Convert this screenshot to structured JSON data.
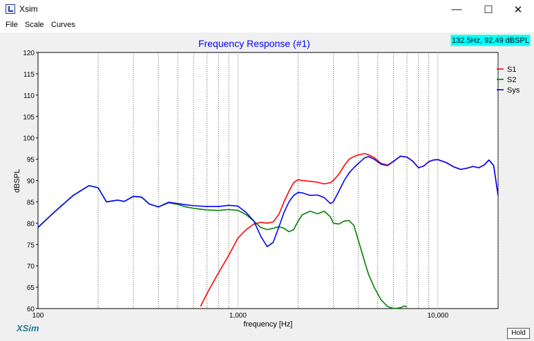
{
  "window": {
    "title": "Xsim",
    "minimize_glyph": "—",
    "maximize_glyph": "☐",
    "close_glyph": "✕"
  },
  "menu": {
    "items": [
      "File",
      "Scale",
      "Curves"
    ]
  },
  "readout": "132.5Hz, 92.49 dBSPL",
  "hold_label": "Hold",
  "logo_text": "XSim",
  "chart_data": {
    "type": "line",
    "title": "Frequency Response (#1)",
    "xlabel": "frequency [Hz]",
    "ylabel": "dBSPL",
    "x_scale": "log",
    "xlim": [
      100,
      20000
    ],
    "ylim": [
      60,
      120
    ],
    "y_ticks": [
      60,
      65,
      70,
      75,
      80,
      85,
      90,
      95,
      100,
      105,
      110,
      115,
      120
    ],
    "x_tick_labels": [
      {
        "value": 100,
        "label": "100"
      },
      {
        "value": 1000,
        "label": "1,000"
      },
      {
        "value": 10000,
        "label": "10,000"
      }
    ],
    "grid": "dotted vertical lines at 200-900 Hz, 2k-9k Hz and 20k Hz; light lines at decades",
    "legend_position": "top-right",
    "series": [
      {
        "name": "S1",
        "color": "#ff0000",
        "x": [
          650,
          700,
          780,
          850,
          900,
          1000,
          1100,
          1200,
          1300,
          1400,
          1500,
          1600,
          1700,
          1800,
          1900,
          2000,
          2100,
          2300,
          2500,
          2700,
          2900,
          3000,
          3200,
          3400,
          3600,
          3800,
          4000,
          4300,
          4500,
          4800,
          5200,
          5600,
          6000,
          6500,
          7000,
          7500,
          8000,
          8500,
          9000,
          9500,
          10000,
          11000,
          12000,
          13000,
          14000,
          15000,
          16000,
          17000,
          18000,
          19000,
          20000
        ],
        "y": [
          60.5,
          63.5,
          67.5,
          70.5,
          72.5,
          76.5,
          78.5,
          79.8,
          80.2,
          80.0,
          80.3,
          82.0,
          85.0,
          87.5,
          89.5,
          90.2,
          90.0,
          89.8,
          89.6,
          89.2,
          89.5,
          90.0,
          91.5,
          93.5,
          95.0,
          95.6,
          96.0,
          96.3,
          96.0,
          95.4,
          94.0,
          93.6,
          94.5,
          95.7,
          95.5,
          94.5,
          93.0,
          93.4,
          94.4,
          94.8,
          94.9,
          94.2,
          93.2,
          92.6,
          92.9,
          93.3,
          93.0,
          93.6,
          94.8,
          93.5,
          86.5
        ]
      },
      {
        "name": "S2",
        "color": "#008000",
        "x": [
          100,
          120,
          150,
          180,
          200,
          220,
          250,
          270,
          300,
          330,
          360,
          400,
          450,
          500,
          550,
          600,
          700,
          800,
          900,
          1000,
          1100,
          1200,
          1300,
          1400,
          1500,
          1600,
          1700,
          1800,
          1900,
          2000,
          2100,
          2300,
          2500,
          2700,
          2900,
          3000,
          3200,
          3400,
          3600,
          3800,
          4000,
          4300,
          4500,
          4800,
          5200,
          5600,
          6000,
          6500,
          6800,
          7000
        ],
        "y": [
          79.0,
          82.5,
          86.5,
          88.8,
          88.3,
          85.0,
          85.4,
          85.1,
          86.3,
          86.1,
          84.5,
          83.8,
          84.8,
          84.4,
          83.8,
          83.5,
          83.1,
          83.0,
          83.2,
          83.0,
          82.0,
          80.5,
          79.0,
          78.5,
          78.8,
          79.2,
          78.8,
          78.0,
          78.5,
          80.5,
          82.0,
          82.8,
          82.2,
          82.8,
          81.5,
          80.0,
          79.8,
          80.5,
          80.6,
          79.5,
          76.0,
          71.0,
          68.0,
          65.0,
          62.0,
          60.5,
          60.0,
          60.2,
          60.6,
          60.4
        ]
      },
      {
        "name": "Sys",
        "color": "#0000ff",
        "x": [
          100,
          120,
          150,
          180,
          200,
          220,
          250,
          270,
          300,
          330,
          360,
          400,
          450,
          500,
          550,
          600,
          700,
          800,
          900,
          1000,
          1100,
          1200,
          1300,
          1400,
          1500,
          1600,
          1700,
          1800,
          1900,
          2000,
          2100,
          2300,
          2500,
          2700,
          2900,
          3000,
          3200,
          3400,
          3600,
          3800,
          4000,
          4300,
          4500,
          4800,
          5200,
          5600,
          6000,
          6500,
          7000,
          7500,
          8000,
          8500,
          9000,
          9500,
          10000,
          11000,
          12000,
          13000,
          14000,
          15000,
          16000,
          17000,
          18000,
          19000,
          20000
        ],
        "y": [
          79.0,
          82.5,
          86.5,
          88.8,
          88.3,
          85.0,
          85.4,
          85.1,
          86.3,
          86.1,
          84.5,
          83.8,
          84.9,
          84.6,
          84.3,
          84.1,
          83.9,
          83.9,
          84.2,
          84.0,
          82.5,
          80.5,
          77.0,
          74.5,
          75.5,
          79.0,
          82.5,
          85.0,
          86.5,
          87.2,
          87.1,
          86.5,
          86.6,
          86.0,
          84.6,
          85.0,
          87.5,
          90.0,
          91.8,
          93.0,
          94.0,
          95.3,
          95.6,
          95.0,
          93.8,
          93.5,
          94.5,
          95.7,
          95.5,
          94.5,
          93.0,
          93.4,
          94.4,
          94.8,
          94.9,
          94.2,
          93.2,
          92.6,
          92.9,
          93.3,
          93.0,
          93.6,
          94.8,
          93.5,
          86.5
        ]
      }
    ]
  }
}
